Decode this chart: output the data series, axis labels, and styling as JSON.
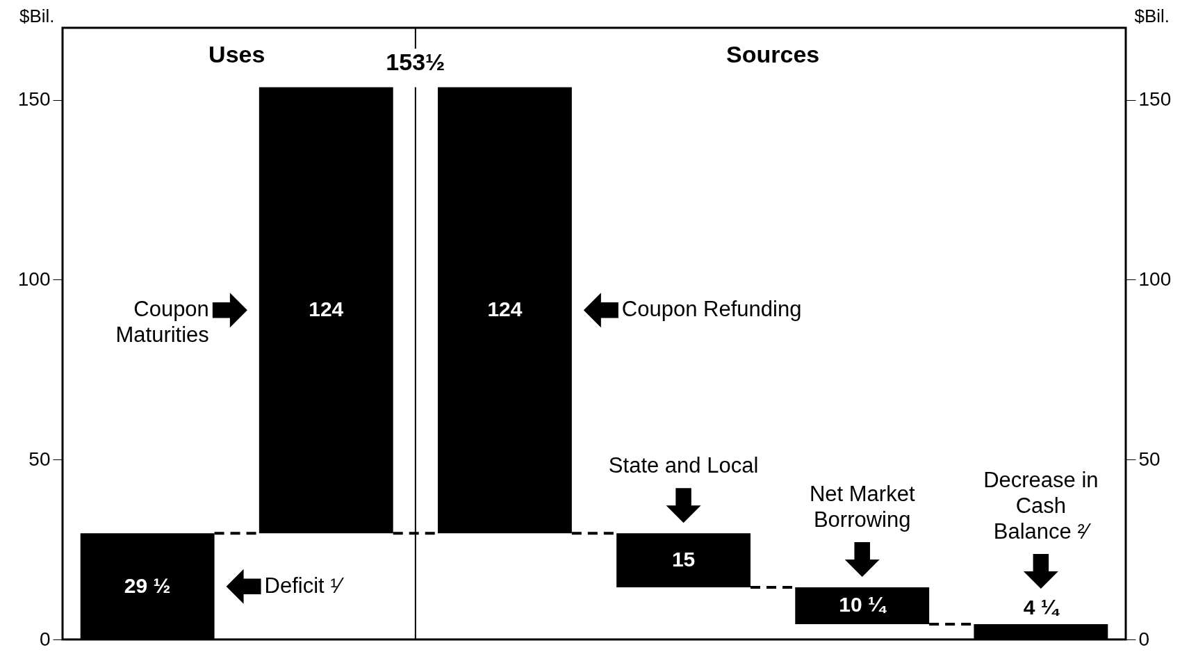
{
  "chart_data": {
    "type": "bar",
    "ylabel": "$Bil.",
    "y2label": "$Bil.",
    "categories": [
      null,
      null,
      null,
      null,
      null,
      null
    ],
    "values": [
      29.5,
      124,
      124,
      15,
      10.25,
      4.25
    ],
    "base": [
      0,
      29.5,
      29.5,
      14.5,
      4.25,
      0
    ],
    "color": "#000000",
    "value_labels": [
      "29 ½",
      "124",
      "124",
      "15",
      "10 ¼",
      "4 ¼"
    ],
    "ylim": [
      0,
      170
    ],
    "yticks": [
      0,
      50,
      100,
      150
    ],
    "y2lim": [
      0,
      170
    ],
    "y2ticks": [
      0,
      50,
      100,
      150
    ],
    "annotations": [
      "Uses",
      "Sources",
      "153½",
      "Deficit ¹⁄",
      "Coupon Maturities",
      "Coupon Refunding",
      "State and Local",
      "Net Market Borrowing",
      "Decrease in Cash Balance ²⁄"
    ],
    "grid": false
  }
}
